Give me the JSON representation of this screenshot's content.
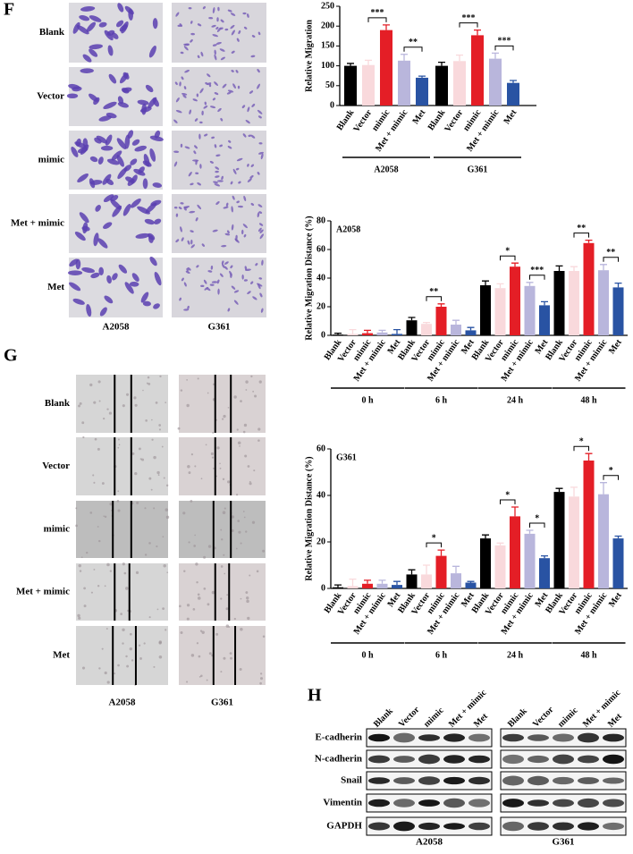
{
  "panels": {
    "F": {
      "label": "F",
      "row_labels": [
        "Blank",
        "Vector",
        "mimic",
        "Met + mimic",
        "Met"
      ],
      "column_labels": [
        "A2058",
        "G361"
      ]
    },
    "G": {
      "label": "G",
      "row_labels": [
        "Blank",
        "Vector",
        "mimic",
        "Met + mimic",
        "Met"
      ],
      "column_labels": [
        "A2058",
        "G361"
      ]
    },
    "H": {
      "label": "H",
      "row_labels": [
        "E-cadherin",
        "N-cadherin",
        "Snail",
        "Vimentin",
        "GAPDH"
      ],
      "blots": [
        {
          "name": "A2058",
          "lanes": [
            "Blank",
            "Vector",
            "mimic",
            "Met + mimic",
            "Met"
          ]
        },
        {
          "name": "G361",
          "lanes": [
            "Blank",
            "Vector",
            "mimic",
            "Met + mimic",
            "Met"
          ]
        }
      ]
    }
  },
  "chart_data": [
    {
      "type": "bar",
      "y_label": "Relative Migration",
      "categories": [
        "Blank",
        "Vector",
        "mimic",
        "Met + mimic",
        "Met",
        "Blank",
        "Vector",
        "mimic",
        "Met + mimic",
        "Met"
      ],
      "groups": [
        "A2058",
        "G361"
      ],
      "values": [
        100,
        102,
        190,
        113,
        70,
        100,
        112,
        177,
        118,
        57
      ],
      "errors": [
        6,
        12,
        13,
        16,
        4,
        9,
        15,
        13,
        14,
        6
      ],
      "significance": [
        null,
        null,
        "***",
        null,
        "**",
        null,
        null,
        "***",
        null,
        "***"
      ],
      "colors": [
        "#000000",
        "#f9d9dc",
        "#e41e26",
        "#b9b6dc",
        "#2953a3"
      ],
      "ylim": [
        0,
        250
      ],
      "yticks": [
        0,
        50,
        100,
        150,
        200,
        250
      ]
    },
    {
      "type": "bar",
      "title": "A2058",
      "y_label": "Relative Migration Distance (%)",
      "categories": [
        "Blank",
        "Vector",
        "mimic",
        "Met + mimic",
        "Met",
        "Blank",
        "Vector",
        "mimic",
        "Met + mimic",
        "Met",
        "Blank",
        "Vector",
        "mimic",
        "Met + mimic",
        "Met",
        "Blank",
        "Vector",
        "mimic",
        "Met + mimic",
        "Met"
      ],
      "groups": [
        "0 h",
        "6 h",
        "24 h",
        "48 h"
      ],
      "values": [
        0.5,
        1,
        1.5,
        2,
        1,
        10.5,
        8,
        20,
        7.5,
        3.5,
        35,
        33,
        48,
        34.5,
        21,
        45,
        45,
        64.5,
        45.5,
        33.5
      ],
      "errors": [
        1,
        3,
        2,
        1.5,
        3,
        2,
        1,
        2,
        3,
        2,
        3,
        3,
        2.5,
        2.5,
        2.5,
        3.5,
        3,
        2,
        4,
        3
      ],
      "significance": [
        null,
        null,
        null,
        null,
        null,
        null,
        null,
        "**",
        null,
        null,
        null,
        null,
        "*",
        null,
        "***",
        null,
        null,
        "**",
        null,
        "**"
      ],
      "colors": [
        "#000000",
        "#f9d9dc",
        "#e41e26",
        "#b9b6dc",
        "#2953a3"
      ],
      "ylim": [
        0,
        80
      ],
      "yticks": [
        0,
        20,
        40,
        60,
        80
      ]
    },
    {
      "type": "bar",
      "title": "G361",
      "y_label": "Relative Migration Distance (%)",
      "categories": [
        "Blank",
        "Vector",
        "mimic",
        "Met + mimic",
        "Met",
        "Blank",
        "Vector",
        "mimic",
        "Met + mimic",
        "Met",
        "Blank",
        "Vector",
        "mimic",
        "Met + mimic",
        "Met",
        "Blank",
        "Vector",
        "mimic",
        "Met + mimic",
        "Met"
      ],
      "groups": [
        "0 h",
        "6 h",
        "24 h",
        "48 h"
      ],
      "values": [
        0.5,
        1,
        2,
        2,
        1.5,
        6,
        6,
        14,
        6.5,
        2.5,
        21.5,
        18.5,
        31,
        23.5,
        13,
        41.5,
        39.5,
        55,
        40.5,
        21.5
      ],
      "errors": [
        1,
        3,
        1.5,
        1.5,
        1.5,
        2,
        4,
        2.5,
        3,
        0.5,
        1.5,
        1,
        4,
        1.5,
        1,
        1.5,
        4,
        3,
        5,
        1
      ],
      "significance": [
        null,
        null,
        null,
        null,
        null,
        null,
        null,
        "*",
        null,
        null,
        null,
        null,
        "*",
        null,
        "*",
        null,
        null,
        "*",
        null,
        "*"
      ],
      "colors": [
        "#000000",
        "#f9d9dc",
        "#e41e26",
        "#b9b6dc",
        "#2953a3"
      ],
      "ylim": [
        0,
        60
      ],
      "yticks": [
        0,
        20,
        40,
        60
      ]
    }
  ]
}
